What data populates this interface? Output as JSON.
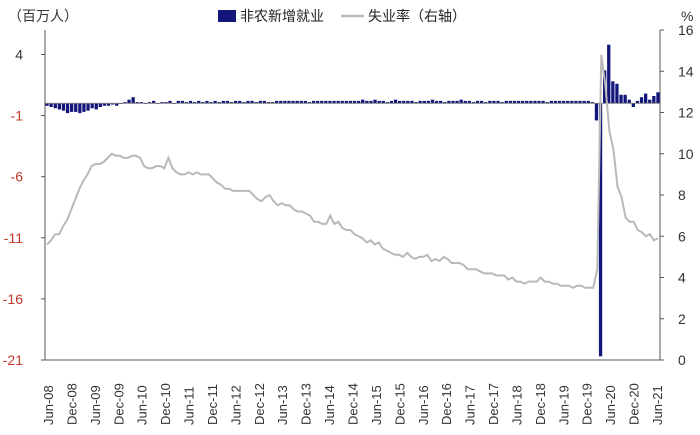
{
  "chart_data": {
    "type": "bar+line",
    "left_axis_unit": "（百万人）",
    "right_axis_unit": "%",
    "legend": [
      "非农新增就业",
      "失业率（右轴）"
    ],
    "left_ticks": [
      "4",
      "-1",
      "-6",
      "-11",
      "-16",
      "-21"
    ],
    "right_ticks": [
      "16",
      "14",
      "12",
      "10",
      "8",
      "6",
      "4",
      "2",
      "0"
    ],
    "ylim_left": [
      -21,
      6
    ],
    "ylim_right": [
      0,
      16
    ],
    "x_ticks": [
      "Jun-08",
      "Dec-08",
      "Jun-09",
      "Dec-09",
      "Jun-10",
      "Dec-10",
      "Jun-11",
      "Dec-11",
      "Jun-12",
      "Dec-12",
      "Jun-13",
      "Dec-13",
      "Jun-14",
      "Dec-14",
      "Jun-15",
      "Dec-15",
      "Jun-16",
      "Dec-16",
      "Jun-17",
      "Dec-17",
      "Jun-18",
      "Dec-18",
      "Jun-19",
      "Dec-19",
      "Jun-20",
      "Dec-20",
      "Jun-21"
    ],
    "colors": {
      "bar": "#13167a",
      "line": "#b9b9b9",
      "left_tick_negative": "#c0392b",
      "axis": "#555555"
    },
    "series": [
      {
        "name": "非农新增就业",
        "kind": "bar",
        "axis": "left",
        "values": [
          -0.2,
          -0.3,
          -0.4,
          -0.5,
          -0.6,
          -0.8,
          -0.7,
          -0.7,
          -0.8,
          -0.7,
          -0.6,
          -0.4,
          -0.5,
          -0.3,
          -0.2,
          -0.2,
          -0.1,
          -0.2,
          0.0,
          0.1,
          0.3,
          0.5,
          0.1,
          0.1,
          0.0,
          0.1,
          0.2,
          0.0,
          0.1,
          0.1,
          0.2,
          0.0,
          0.2,
          0.2,
          0.1,
          0.2,
          0.1,
          0.2,
          0.1,
          0.2,
          0.1,
          0.2,
          0.1,
          0.2,
          0.2,
          0.1,
          0.2,
          0.2,
          0.1,
          0.2,
          0.2,
          0.1,
          0.2,
          0.2,
          0.1,
          0.1,
          0.2,
          0.2,
          0.2,
          0.2,
          0.2,
          0.2,
          0.2,
          0.2,
          0.1,
          0.2,
          0.2,
          0.2,
          0.2,
          0.2,
          0.2,
          0.2,
          0.2,
          0.2,
          0.2,
          0.2,
          0.2,
          0.3,
          0.2,
          0.2,
          0.3,
          0.2,
          0.2,
          0.1,
          0.2,
          0.3,
          0.2,
          0.2,
          0.2,
          0.2,
          0.1,
          0.2,
          0.2,
          0.2,
          0.3,
          0.2,
          0.2,
          0.1,
          0.2,
          0.2,
          0.2,
          0.3,
          0.2,
          0.2,
          0.1,
          0.2,
          0.2,
          0.1,
          0.2,
          0.2,
          0.2,
          0.1,
          0.2,
          0.2,
          0.2,
          0.2,
          0.2,
          0.2,
          0.2,
          0.2,
          0.2,
          0.2,
          0.1,
          0.2,
          0.2,
          0.2,
          0.2,
          0.2,
          0.2,
          0.2,
          0.2,
          0.2,
          0.2,
          0.1,
          -1.4,
          -20.7,
          2.7,
          4.8,
          1.8,
          1.6,
          0.7,
          0.7,
          0.3,
          -0.3,
          0.2,
          0.5,
          0.8,
          0.3,
          0.6,
          0.9
        ],
        "x_start": "Jun-08",
        "x_end": "Jun-21"
      },
      {
        "name": "失业率（右轴）",
        "kind": "line",
        "axis": "right",
        "values": [
          5.6,
          5.8,
          6.1,
          6.1,
          6.5,
          6.8,
          7.3,
          7.8,
          8.3,
          8.7,
          9.0,
          9.4,
          9.5,
          9.5,
          9.6,
          9.8,
          10.0,
          9.9,
          9.9,
          9.8,
          9.8,
          9.9,
          9.9,
          9.8,
          9.4,
          9.3,
          9.3,
          9.4,
          9.4,
          9.3,
          9.8,
          9.3,
          9.1,
          9.0,
          9.0,
          9.1,
          9.0,
          9.1,
          9.0,
          9.0,
          9.0,
          8.8,
          8.6,
          8.5,
          8.3,
          8.3,
          8.2,
          8.2,
          8.2,
          8.2,
          8.2,
          8.0,
          7.8,
          7.7,
          7.9,
          8.0,
          7.7,
          7.5,
          7.6,
          7.5,
          7.5,
          7.3,
          7.2,
          7.2,
          7.1,
          7.0,
          6.7,
          6.7,
          6.6,
          6.6,
          7.0,
          6.6,
          6.7,
          6.4,
          6.3,
          6.3,
          6.1,
          6.0,
          5.9,
          5.7,
          5.8,
          5.6,
          5.7,
          5.4,
          5.3,
          5.2,
          5.1,
          5.1,
          5.0,
          5.2,
          5.0,
          4.9,
          5.0,
          5.0,
          5.1,
          4.8,
          4.9,
          4.8,
          5.0,
          4.9,
          4.7,
          4.7,
          4.7,
          4.6,
          4.4,
          4.4,
          4.4,
          4.3,
          4.2,
          4.2,
          4.2,
          4.1,
          4.1,
          4.1,
          3.9,
          4.0,
          3.8,
          3.8,
          3.7,
          3.8,
          3.8,
          3.8,
          4.0,
          3.8,
          3.8,
          3.7,
          3.7,
          3.6,
          3.6,
          3.6,
          3.5,
          3.6,
          3.6,
          3.5,
          3.5,
          3.5,
          4.4,
          14.8,
          13.3,
          11.1,
          10.2,
          8.4,
          7.9,
          6.9,
          6.7,
          6.7,
          6.3,
          6.2,
          6.0,
          6.1,
          5.8,
          5.9
        ],
        "x_start": "Jun-08",
        "x_end": "Jun-21"
      }
    ]
  }
}
